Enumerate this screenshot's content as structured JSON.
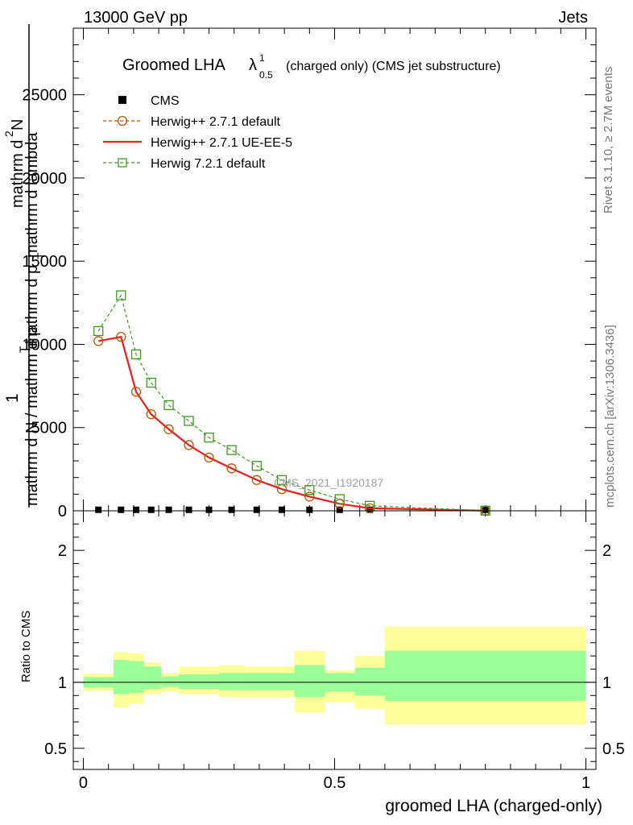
{
  "header": {
    "left": "13000 GeV pp",
    "right": "Jets"
  },
  "plot_title": {
    "main": "Groomed LHA",
    "lambda": "λ",
    "sup": "1",
    "sub": "0.5",
    "detail": "(charged only) (CMS jet substructure)"
  },
  "side_text": {
    "rivet": "Rivet 3.1.10, ≥ 2.7M events",
    "mcplots": "mcplots.cern.ch [arXiv:1306.3436]"
  },
  "watermark": "CMS_2021_I1920187",
  "chart_data": [
    {
      "type": "line",
      "ylabel": "1 / mathrm d N / mathrm d p_T mathrm d^2N / mathrm d p_T mathrm d lambda",
      "ylabel_parts": [
        "1",
        "mathrm d N / mathrm d p",
        "T",
        "mathrm d",
        "2",
        "N",
        "mathrm d p",
        "T",
        "mathrm d lambda"
      ],
      "xlim": [
        -0.02,
        1.02
      ],
      "ylim": [
        0,
        29000
      ],
      "yticks": [
        0,
        5000,
        10000,
        15000,
        20000,
        25000
      ],
      "ytick_labels": [
        "0",
        "5000",
        "10000",
        "15000",
        "20000",
        "25000"
      ],
      "legend_position": "top-left",
      "x": [
        0.03,
        0.075,
        0.105,
        0.135,
        0.17,
        0.21,
        0.25,
        0.295,
        0.345,
        0.395,
        0.45,
        0.51,
        0.57,
        0.8
      ],
      "series": [
        {
          "name": "CMS",
          "color": "#000000",
          "marker": "filled-square",
          "values": [
            60,
            60,
            60,
            60,
            60,
            60,
            60,
            60,
            60,
            60,
            60,
            60,
            60,
            60
          ]
        },
        {
          "name": "Herwig++ 2.7.1 default",
          "color": "#b35900",
          "marker": "open-circle",
          "dash": "dashed",
          "values": [
            10200,
            10450,
            7150,
            5800,
            4900,
            3950,
            3200,
            2550,
            1850,
            1300,
            850,
            420,
            150,
            10
          ]
        },
        {
          "name": "Herwig++ 2.7.1 UE-EE-5",
          "color": "#ee1c1c",
          "marker": "none",
          "dash": "solid",
          "values": [
            10200,
            10450,
            7150,
            5800,
            4900,
            3950,
            3200,
            2550,
            1850,
            1300,
            850,
            420,
            150,
            10
          ]
        },
        {
          "name": "Herwig 7.2.1 default",
          "color": "#3d9a1f",
          "marker": "open-square",
          "dash": "dashed",
          "values": [
            10800,
            12950,
            9400,
            7700,
            6350,
            5400,
            4400,
            3650,
            2700,
            1850,
            1250,
            700,
            300,
            10
          ]
        }
      ]
    },
    {
      "type": "area",
      "ylabel": "Ratio to CMS",
      "xlabel": "groomed LHA (charged-only)",
      "xlim": [
        -0.02,
        1.02
      ],
      "ylim": [
        0.34,
        2.3
      ],
      "yticks": [
        0.5,
        1,
        2
      ],
      "ytick_labels": [
        "0.5",
        "1",
        "2"
      ],
      "xticks": [
        0,
        0.5,
        1
      ],
      "xtick_labels": [
        "0",
        "0.5",
        "1"
      ],
      "reference_line": 1,
      "bins": [
        {
          "lo": 0.0,
          "hi": 0.06,
          "yellow": [
            0.935,
            1.065
          ],
          "green": [
            0.96,
            1.04
          ]
        },
        {
          "lo": 0.06,
          "hi": 0.09,
          "yellow": [
            0.81,
            1.23
          ],
          "green": [
            0.91,
            1.17
          ]
        },
        {
          "lo": 0.09,
          "hi": 0.12,
          "yellow": [
            0.84,
            1.22
          ],
          "green": [
            0.92,
            1.16
          ]
        },
        {
          "lo": 0.12,
          "hi": 0.155,
          "yellow": [
            0.91,
            1.15
          ],
          "green": [
            0.95,
            1.12
          ]
        },
        {
          "lo": 0.155,
          "hi": 0.19,
          "yellow": [
            0.93,
            1.07
          ],
          "green": [
            0.965,
            1.045
          ]
        },
        {
          "lo": 0.19,
          "hi": 0.27,
          "yellow": [
            0.91,
            1.12
          ],
          "green": [
            0.95,
            1.06
          ]
        },
        {
          "lo": 0.27,
          "hi": 0.32,
          "yellow": [
            0.89,
            1.13
          ],
          "green": [
            0.94,
            1.07
          ]
        },
        {
          "lo": 0.32,
          "hi": 0.42,
          "yellow": [
            0.89,
            1.12
          ],
          "green": [
            0.94,
            1.07
          ]
        },
        {
          "lo": 0.42,
          "hi": 0.48,
          "yellow": [
            0.77,
            1.24
          ],
          "green": [
            0.89,
            1.13
          ]
        },
        {
          "lo": 0.48,
          "hi": 0.54,
          "yellow": [
            0.85,
            1.09
          ],
          "green": [
            0.93,
            1.07
          ]
        },
        {
          "lo": 0.54,
          "hi": 0.6,
          "yellow": [
            0.8,
            1.2
          ],
          "green": [
            0.9,
            1.11
          ]
        },
        {
          "lo": 0.6,
          "hi": 1.0,
          "yellow": [
            0.68,
            1.42
          ],
          "green": [
            0.86,
            1.24
          ]
        }
      ],
      "colors": {
        "yellow": "#ffff99",
        "green": "#99ff99"
      }
    }
  ]
}
